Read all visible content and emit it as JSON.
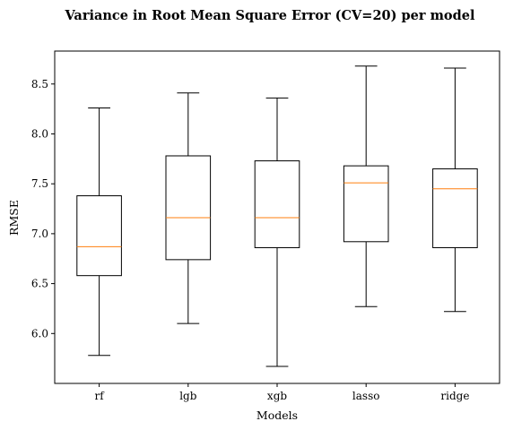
{
  "chart_data": {
    "type": "boxplot",
    "title": "Variance in Root Mean Square Error (CV=20) per model",
    "xlabel": "Models",
    "ylabel": "RMSE",
    "ylim": [
      5.5,
      8.83
    ],
    "yticks": [
      "6.0",
      "6.5",
      "7.0",
      "7.5",
      "8.0",
      "8.5"
    ],
    "grid": false,
    "categories": [
      "rf",
      "lgb",
      "xgb",
      "lasso",
      "ridge"
    ],
    "boxes": [
      {
        "category": "rf",
        "whisker_low": 5.78,
        "q1": 6.58,
        "median": 6.87,
        "q3": 7.38,
        "whisker_high": 8.26
      },
      {
        "category": "lgb",
        "whisker_low": 6.1,
        "q1": 6.74,
        "median": 7.16,
        "q3": 7.78,
        "whisker_high": 8.41
      },
      {
        "category": "xgb",
        "whisker_low": 5.67,
        "q1": 6.86,
        "median": 7.16,
        "q3": 7.73,
        "whisker_high": 8.36
      },
      {
        "category": "lasso",
        "whisker_low": 6.27,
        "q1": 6.92,
        "median": 7.51,
        "q3": 7.68,
        "whisker_high": 8.68
      },
      {
        "category": "ridge",
        "whisker_low": 6.22,
        "q1": 6.86,
        "median": 7.45,
        "q3": 7.65,
        "whisker_high": 8.66
      }
    ],
    "colors": {
      "box": "#000000",
      "median": "#ff7f0e",
      "axes": "#000000"
    }
  }
}
